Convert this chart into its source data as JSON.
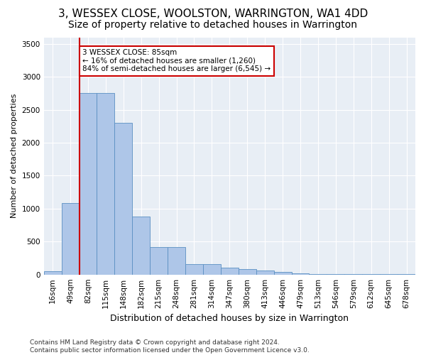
{
  "title": "3, WESSEX CLOSE, WOOLSTON, WARRINGTON, WA1 4DD",
  "subtitle": "Size of property relative to detached houses in Warrington",
  "xlabel": "Distribution of detached houses by size in Warrington",
  "ylabel": "Number of detached properties",
  "categories": [
    "16sqm",
    "49sqm",
    "82sqm",
    "115sqm",
    "148sqm",
    "182sqm",
    "215sqm",
    "248sqm",
    "281sqm",
    "314sqm",
    "347sqm",
    "380sqm",
    "413sqm",
    "446sqm",
    "479sqm",
    "513sqm",
    "546sqm",
    "579sqm",
    "612sqm",
    "645sqm",
    "678sqm"
  ],
  "values": [
    50,
    1080,
    2750,
    2750,
    2300,
    880,
    420,
    420,
    160,
    155,
    100,
    80,
    60,
    35,
    20,
    10,
    8,
    5,
    3,
    2,
    2
  ],
  "bar_color": "#aec6e8",
  "bar_edge_color": "#5a8fc2",
  "vline_x": 2,
  "vline_color": "#cc0000",
  "annotation_text": "3 WESSEX CLOSE: 85sqm\n← 16% of detached houses are smaller (1,260)\n84% of semi-detached houses are larger (6,545) →",
  "annotation_box_color": "#ffffff",
  "annotation_box_edge": "#cc0000",
  "ylim": [
    0,
    3600
  ],
  "yticks": [
    0,
    500,
    1000,
    1500,
    2000,
    2500,
    3000,
    3500
  ],
  "background_color": "#e8eef5",
  "footer_text": "Contains HM Land Registry data © Crown copyright and database right 2024.\nContains public sector information licensed under the Open Government Licence v3.0.",
  "title_fontsize": 11,
  "subtitle_fontsize": 10,
  "xlabel_fontsize": 9,
  "ylabel_fontsize": 8,
  "tick_fontsize": 7.5,
  "footer_fontsize": 6.5
}
